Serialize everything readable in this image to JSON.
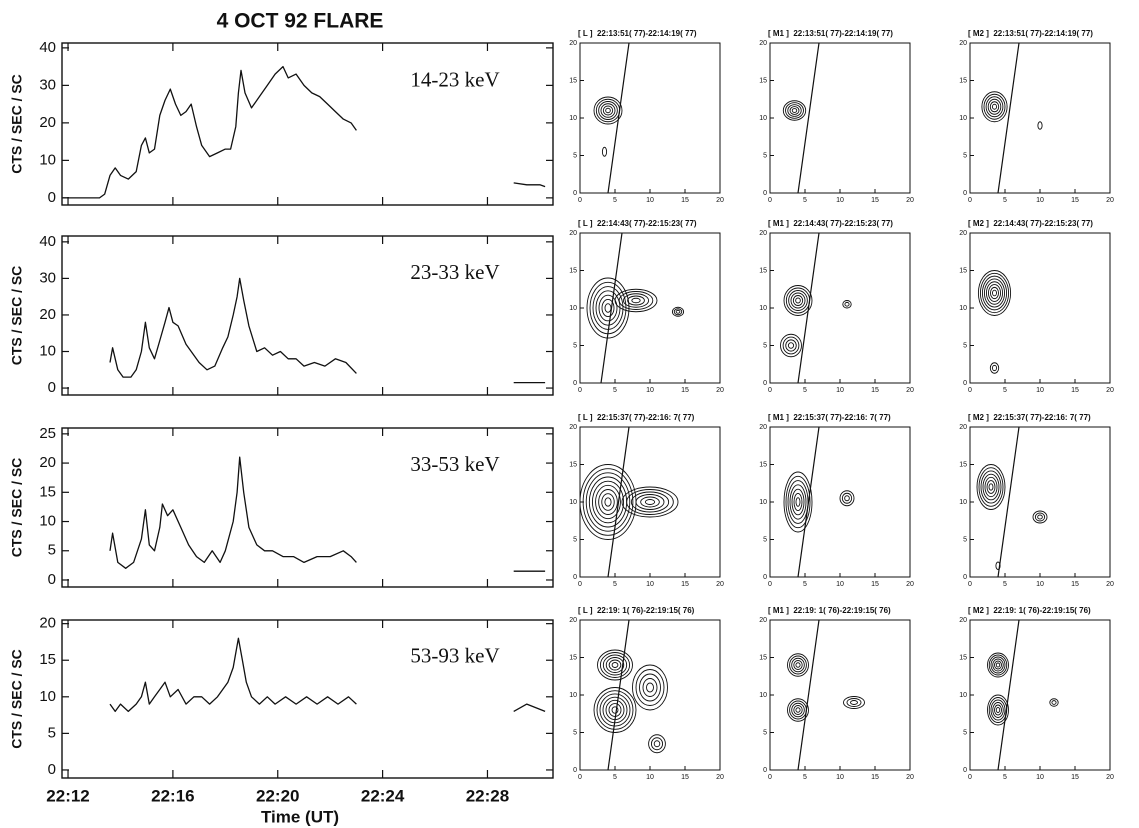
{
  "title": "4 OCT 92 FLARE",
  "chart_data": [
    {
      "type": "line",
      "label": "14-23 keV",
      "ylabel": "CTS / SEC / SC",
      "xlim": [
        1331.77,
        1350.5
      ],
      "xticks": [
        1332,
        1336,
        1340,
        1344,
        1348
      ],
      "ylim": [
        -1.9,
        41.3
      ],
      "yticks": [
        0,
        10,
        20,
        30,
        40
      ],
      "color": "#111111",
      "x": [
        1331.8,
        1332.5,
        1333.2,
        1333.4,
        1333.6,
        1333.8,
        1334.0,
        1334.3,
        1334.6,
        1334.8,
        1334.95,
        1335.1,
        1335.3,
        1335.5,
        1335.7,
        1335.9,
        1336.1,
        1336.3,
        1336.5,
        1336.7,
        1336.9,
        1337.1,
        1337.4,
        1337.7,
        1338.0,
        1338.2,
        1338.4,
        1338.5,
        1338.6,
        1338.75,
        1339.0,
        1339.3,
        1339.6,
        1339.9,
        1340.2,
        1340.4,
        1340.7,
        1341.0,
        1341.3,
        1341.6,
        1341.9,
        1342.2,
        1342.5,
        1342.8,
        1343.0,
        null,
        1349.0,
        1349.5,
        1350.0,
        1350.2
      ],
      "values": [
        0,
        0,
        0,
        1,
        6,
        8,
        6,
        5,
        7,
        14,
        16,
        12,
        13,
        22,
        26,
        29,
        25,
        22,
        23,
        25,
        19,
        14,
        11,
        12,
        13,
        13,
        19,
        28,
        34,
        28,
        24,
        27,
        30,
        33,
        35,
        32,
        33,
        30,
        28,
        27,
        25,
        23,
        21,
        20,
        18,
        null,
        4,
        3.5,
        3.5,
        3
      ]
    },
    {
      "type": "line",
      "label": "23-33 keV",
      "ylabel": "CTS / SEC / SC",
      "xlim": [
        1331.77,
        1350.5
      ],
      "xticks": [
        1332,
        1336,
        1340,
        1344,
        1348
      ],
      "ylim": [
        -1.9,
        41.6
      ],
      "yticks": [
        0,
        10,
        20,
        30,
        40
      ],
      "color": "#111111",
      "x": [
        1333.6,
        1333.7,
        1333.9,
        1334.1,
        1334.4,
        1334.6,
        1334.8,
        1334.95,
        1335.1,
        1335.3,
        1335.5,
        1335.7,
        1335.85,
        1336.0,
        1336.2,
        1336.5,
        1336.8,
        1337.0,
        1337.3,
        1337.6,
        1337.9,
        1338.1,
        1338.3,
        1338.45,
        1338.55,
        1338.7,
        1338.9,
        1339.2,
        1339.5,
        1339.8,
        1340.1,
        1340.4,
        1340.7,
        1341.0,
        1341.4,
        1341.8,
        1342.2,
        1342.6,
        1343.0,
        null,
        1349.0,
        1349.5,
        1350.2
      ],
      "values": [
        7,
        11,
        5,
        3,
        3,
        5,
        10,
        18,
        11,
        8,
        13,
        18,
        22,
        18,
        17,
        12,
        9,
        7,
        5,
        6,
        11,
        14,
        20,
        25,
        30,
        24,
        17,
        10,
        11,
        9,
        10,
        8,
        8,
        6,
        7,
        6,
        8,
        7,
        4,
        null,
        1.5,
        1.5,
        1.5
      ]
    },
    {
      "type": "line",
      "label": "33-53 keV",
      "ylabel": "CTS / SEC / SC",
      "xlim": [
        1331.77,
        1350.5
      ],
      "xticks": [
        1332,
        1336,
        1340,
        1344,
        1348
      ],
      "ylim": [
        -1.2,
        26
      ],
      "yticks": [
        0,
        5,
        10,
        15,
        20,
        25
      ],
      "color": "#111111",
      "x": [
        1333.6,
        1333.7,
        1333.9,
        1334.2,
        1334.5,
        1334.8,
        1334.95,
        1335.1,
        1335.3,
        1335.5,
        1335.6,
        1335.8,
        1336.0,
        1336.3,
        1336.6,
        1336.9,
        1337.2,
        1337.5,
        1337.8,
        1338.0,
        1338.3,
        1338.45,
        1338.55,
        1338.7,
        1338.9,
        1339.2,
        1339.5,
        1339.8,
        1340.2,
        1340.6,
        1341.0,
        1341.5,
        1342.0,
        1342.5,
        1342.8,
        1343.0,
        null,
        1349.0,
        1349.5,
        1350.2
      ],
      "values": [
        5,
        8,
        3,
        2,
        3,
        7,
        12,
        6,
        5,
        9,
        13,
        11,
        12,
        9,
        6,
        4,
        3,
        5,
        3,
        5,
        10,
        15,
        21,
        15,
        9,
        6,
        5,
        5,
        4,
        4,
        3,
        4,
        4,
        5,
        4,
        3,
        null,
        1.5,
        1.5,
        1.5
      ]
    },
    {
      "type": "line",
      "label": "53-93 keV",
      "ylabel": "CTS / SEC / SC",
      "xlabel": "Time (UT)",
      "xlim": [
        1331.77,
        1350.5
      ],
      "xticks": [
        {
          "value": 1332,
          "label": "22:12"
        },
        {
          "value": 1336,
          "label": "22:16"
        },
        {
          "value": 1340,
          "label": "22:20"
        },
        {
          "value": 1344,
          "label": "22:24"
        },
        {
          "value": 1348,
          "label": "22:28"
        }
      ],
      "ylim": [
        -1.1,
        20.5
      ],
      "yticks": [
        0,
        5,
        10,
        15,
        20
      ],
      "color": "#111111",
      "x": [
        1333.6,
        1333.8,
        1334.0,
        1334.3,
        1334.6,
        1334.8,
        1334.95,
        1335.1,
        1335.3,
        1335.5,
        1335.7,
        1335.9,
        1336.2,
        1336.5,
        1336.8,
        1337.1,
        1337.4,
        1337.7,
        1337.9,
        1338.1,
        1338.3,
        1338.5,
        1338.65,
        1338.8,
        1339.0,
        1339.3,
        1339.6,
        1339.9,
        1340.3,
        1340.7,
        1341.1,
        1341.5,
        1341.9,
        1342.3,
        1342.7,
        1343.0,
        null,
        1349.0,
        1349.5,
        1350.2
      ],
      "values": [
        9,
        8,
        9,
        8,
        9,
        10,
        12,
        9,
        10,
        11,
        12,
        10,
        11,
        9,
        10,
        10,
        9,
        10,
        11,
        12,
        14,
        18,
        15,
        12,
        10,
        9,
        10,
        9,
        10,
        9,
        10,
        9,
        10,
        9,
        10,
        9,
        null,
        8,
        9,
        8
      ]
    },
    {
      "type": "contour",
      "title": "[ L ]  22:13:51( 77)-22:14:19( 77)",
      "xlim": [
        0,
        20
      ],
      "ylim": [
        0,
        20
      ],
      "xticks": [
        0,
        5,
        10,
        15,
        20
      ],
      "yticks": [
        0,
        5,
        10,
        15,
        20
      ],
      "line": {
        "x": [
          4,
          7
        ],
        "y": [
          0,
          20
        ]
      },
      "sources": [
        {
          "x": 4,
          "y": 11,
          "rx": 2,
          "ry": 1.8,
          "levels": 6
        },
        {
          "x": 3.5,
          "y": 5.5,
          "rx": 0.3,
          "ry": 0.6,
          "levels": 1
        }
      ]
    },
    {
      "type": "contour",
      "title": "[ M1 ]  22:13:51( 77)-22:14:19( 77)",
      "xlim": [
        0,
        20
      ],
      "ylim": [
        0,
        20
      ],
      "xticks": [
        0,
        5,
        10,
        15,
        20
      ],
      "yticks": [
        0,
        5,
        10,
        15,
        20
      ],
      "line": {
        "x": [
          4,
          7
        ],
        "y": [
          0,
          20
        ]
      },
      "sources": [
        {
          "x": 3.5,
          "y": 11,
          "rx": 1.6,
          "ry": 1.3,
          "levels": 5
        }
      ]
    },
    {
      "type": "contour",
      "title": "[ M2 ]  22:13:51( 77)-22:14:19( 77)",
      "xlim": [
        0,
        20
      ],
      "ylim": [
        0,
        20
      ],
      "xticks": [
        0,
        5,
        10,
        15,
        20
      ],
      "yticks": [
        0,
        5,
        10,
        15,
        20
      ],
      "line": {
        "x": [
          4,
          7
        ],
        "y": [
          0,
          20
        ]
      },
      "sources": [
        {
          "x": 3.5,
          "y": 11.5,
          "rx": 1.8,
          "ry": 2,
          "levels": 6
        },
        {
          "x": 10,
          "y": 9,
          "rx": 0.3,
          "ry": 0.5,
          "levels": 1
        }
      ]
    },
    {
      "type": "contour",
      "title": "[ L ]  22:14:43( 77)-22:15:23( 77)",
      "xlim": [
        0,
        20
      ],
      "ylim": [
        0,
        20
      ],
      "xticks": [
        0,
        5,
        10,
        15,
        20
      ],
      "yticks": [
        0,
        5,
        10,
        15,
        20
      ],
      "line": {
        "x": [
          3,
          6
        ],
        "y": [
          0,
          20
        ]
      },
      "sources": [
        {
          "x": 4,
          "y": 10,
          "rx": 3,
          "ry": 4,
          "levels": 7
        },
        {
          "x": 8,
          "y": 11,
          "rx": 3,
          "ry": 1.5,
          "levels": 5
        },
        {
          "x": 14,
          "y": 9.5,
          "rx": 0.8,
          "ry": 0.6,
          "levels": 3
        }
      ]
    },
    {
      "type": "contour",
      "title": "[ M1 ]  22:14:43( 77)-22:15:23( 77)",
      "xlim": [
        0,
        20
      ],
      "ylim": [
        0,
        20
      ],
      "xticks": [
        0,
        5,
        10,
        15,
        20
      ],
      "yticks": [
        0,
        5,
        10,
        15,
        20
      ],
      "line": {
        "x": [
          4,
          7
        ],
        "y": [
          0,
          20
        ]
      },
      "sources": [
        {
          "x": 4,
          "y": 11,
          "rx": 2,
          "ry": 2,
          "levels": 6
        },
        {
          "x": 3,
          "y": 5,
          "rx": 1.5,
          "ry": 1.5,
          "levels": 4
        },
        {
          "x": 11,
          "y": 10.5,
          "rx": 0.6,
          "ry": 0.5,
          "levels": 2
        }
      ]
    },
    {
      "type": "contour",
      "title": "[ M2 ]  22:14:43( 77)-22:15:23( 77)",
      "xlim": [
        0,
        20
      ],
      "ylim": [
        0,
        20
      ],
      "xticks": [
        0,
        5,
        10,
        15,
        20
      ],
      "yticks": [
        0,
        5,
        10,
        15,
        20
      ],
      "sources": [
        {
          "x": 3.5,
          "y": 12,
          "rx": 2.3,
          "ry": 3,
          "levels": 8
        },
        {
          "x": 3.5,
          "y": 2,
          "rx": 0.6,
          "ry": 0.7,
          "levels": 2
        }
      ]
    },
    {
      "type": "contour",
      "title": "[ L ]  22:15:37( 77)-22:16: 7( 77)",
      "xlim": [
        0,
        20
      ],
      "ylim": [
        0,
        20
      ],
      "xticks": [
        0,
        5,
        10,
        15,
        20
      ],
      "yticks": [
        0,
        5,
        10,
        15,
        20
      ],
      "line": {
        "x": [
          4,
          7
        ],
        "y": [
          0,
          20
        ]
      },
      "sources": [
        {
          "x": 4,
          "y": 10,
          "rx": 4,
          "ry": 5,
          "levels": 9
        },
        {
          "x": 10,
          "y": 10,
          "rx": 4,
          "ry": 2,
          "levels": 6
        }
      ]
    },
    {
      "type": "contour",
      "title": "[ M1 ]  22:15:37( 77)-22:16: 7( 77)",
      "xlim": [
        0,
        20
      ],
      "ylim": [
        0,
        20
      ],
      "xticks": [
        0,
        5,
        10,
        15,
        20
      ],
      "yticks": [
        0,
        5,
        10,
        15,
        20
      ],
      "line": {
        "x": [
          4,
          7
        ],
        "y": [
          0,
          20
        ]
      },
      "sources": [
        {
          "x": 4,
          "y": 10,
          "rx": 2,
          "ry": 4,
          "levels": 7
        },
        {
          "x": 11,
          "y": 10.5,
          "rx": 1,
          "ry": 1,
          "levels": 3
        }
      ]
    },
    {
      "type": "contour",
      "title": "[ M2 ]  22:15:37( 77)-22:16: 7( 77)",
      "xlim": [
        0,
        20
      ],
      "ylim": [
        0,
        20
      ],
      "xticks": [
        0,
        5,
        10,
        15,
        20
      ],
      "yticks": [
        0,
        5,
        10,
        15,
        20
      ],
      "line": {
        "x": [
          4,
          7
        ],
        "y": [
          0,
          20
        ]
      },
      "sources": [
        {
          "x": 3,
          "y": 12,
          "rx": 2,
          "ry": 3,
          "levels": 7
        },
        {
          "x": 10,
          "y": 8,
          "rx": 1,
          "ry": 0.8,
          "levels": 3
        },
        {
          "x": 4,
          "y": 1.5,
          "rx": 0.3,
          "ry": 0.5,
          "levels": 1
        }
      ]
    },
    {
      "type": "contour",
      "title": "[ L ]  22:19: 1( 76)-22:19:15( 76)",
      "xlim": [
        0,
        20
      ],
      "ylim": [
        0,
        20
      ],
      "xticks": [
        0,
        5,
        10,
        15,
        20
      ],
      "yticks": [
        0,
        5,
        10,
        15,
        20
      ],
      "line": {
        "x": [
          4,
          7
        ],
        "y": [
          0,
          20
        ]
      },
      "sources": [
        {
          "x": 5,
          "y": 14,
          "rx": 2.5,
          "ry": 2,
          "levels": 6
        },
        {
          "x": 5,
          "y": 8,
          "rx": 3,
          "ry": 3,
          "levels": 7
        },
        {
          "x": 10,
          "y": 11,
          "rx": 2.5,
          "ry": 3,
          "levels": 5
        },
        {
          "x": 11,
          "y": 3.5,
          "rx": 1.2,
          "ry": 1.2,
          "levels": 3
        }
      ]
    },
    {
      "type": "contour",
      "title": "[ M1 ]  22:19: 1( 76)-22:19:15( 76)",
      "xlim": [
        0,
        20
      ],
      "ylim": [
        0,
        20
      ],
      "xticks": [
        0,
        5,
        10,
        15,
        20
      ],
      "yticks": [
        0,
        5,
        10,
        15,
        20
      ],
      "line": {
        "x": [
          4,
          7
        ],
        "y": [
          0,
          20
        ]
      },
      "sources": [
        {
          "x": 4,
          "y": 14,
          "rx": 1.5,
          "ry": 1.5,
          "levels": 5
        },
        {
          "x": 4,
          "y": 8,
          "rx": 1.5,
          "ry": 1.5,
          "levels": 5
        },
        {
          "x": 12,
          "y": 9,
          "rx": 1.5,
          "ry": 0.8,
          "levels": 3
        }
      ]
    },
    {
      "type": "contour",
      "title": "[ M2 ]  22:19: 1( 76)-22:19:15( 76)",
      "xlim": [
        0,
        20
      ],
      "ylim": [
        0,
        20
      ],
      "xticks": [
        0,
        5,
        10,
        15,
        20
      ],
      "yticks": [
        0,
        5,
        10,
        15,
        20
      ],
      "line": {
        "x": [
          4,
          7
        ],
        "y": [
          0,
          20
        ]
      },
      "sources": [
        {
          "x": 4,
          "y": 14,
          "rx": 1.5,
          "ry": 1.6,
          "levels": 6
        },
        {
          "x": 4,
          "y": 8,
          "rx": 1.5,
          "ry": 2,
          "levels": 6
        },
        {
          "x": 12,
          "y": 9,
          "rx": 0.6,
          "ry": 0.5,
          "levels": 2
        }
      ]
    }
  ]
}
